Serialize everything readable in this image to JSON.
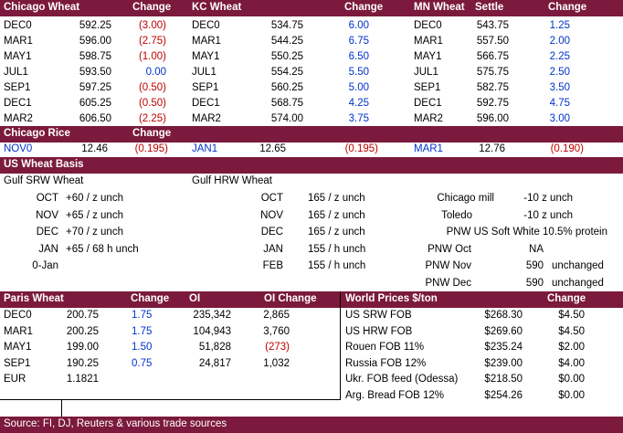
{
  "futures": {
    "headers": [
      "Chicago Wheat",
      "Change",
      "KC Wheat",
      "Change",
      "MN Wheat",
      "Settle",
      "Change"
    ],
    "rows": [
      {
        "cm": "DEC0",
        "cp": "592.25",
        "cc": "(3.00)",
        "cc_neg": true,
        "km": "DEC0",
        "kp": "534.75",
        "kc": "6.00",
        "kc_neg": false,
        "mm": "DEC0",
        "mp": "543.75",
        "mc": "1.25",
        "mc_neg": false
      },
      {
        "cm": "MAR1",
        "cp": "596.00",
        "cc": "(2.75)",
        "cc_neg": true,
        "km": "MAR1",
        "kp": "544.25",
        "kc": "6.75",
        "kc_neg": false,
        "mm": "MAR1",
        "mp": "557.50",
        "mc": "2.00",
        "mc_neg": false
      },
      {
        "cm": "MAY1",
        "cp": "598.75",
        "cc": "(1.00)",
        "cc_neg": true,
        "km": "MAY1",
        "kp": "550.25",
        "kc": "6.50",
        "kc_neg": false,
        "mm": "MAY1",
        "mp": "566.75",
        "mc": "2.25",
        "mc_neg": false
      },
      {
        "cm": "JUL1",
        "cp": "593.50",
        "cc": "0.00",
        "cc_neg": false,
        "km": "JUL1",
        "kp": "554.25",
        "kc": "5.50",
        "kc_neg": false,
        "mm": "JUL1",
        "mp": "575.75",
        "mc": "2.50",
        "mc_neg": false
      },
      {
        "cm": "SEP1",
        "cp": "597.25",
        "cc": "(0.50)",
        "cc_neg": true,
        "km": "SEP1",
        "kp": "560.25",
        "kc": "5.00",
        "kc_neg": false,
        "mm": "SEP1",
        "mp": "582.75",
        "mc": "3.50",
        "mc_neg": false
      },
      {
        "cm": "DEC1",
        "cp": "605.25",
        "cc": "(0.50)",
        "cc_neg": true,
        "km": "DEC1",
        "kp": "568.75",
        "kc": "4.25",
        "kc_neg": false,
        "mm": "DEC1",
        "mp": "592.75",
        "mc": "4.75",
        "mc_neg": false
      },
      {
        "cm": "MAR2",
        "cp": "606.50",
        "cc": "(2.25)",
        "cc_neg": true,
        "km": "MAR2",
        "kp": "574.00",
        "kc": "3.75",
        "kc_neg": false,
        "mm": "MAR2",
        "mp": "596.00",
        "mc": "3.00",
        "mc_neg": false
      }
    ]
  },
  "rice": {
    "headers": [
      "Chicago Rice",
      "Change"
    ],
    "row": {
      "m1": "NOV0",
      "p1": "12.46",
      "c1": "(0.195)",
      "m2": "JAN1",
      "p2": "12.65",
      "c2": "(0.195)",
      "m3": "MAR1",
      "p3": "12.76",
      "c3": "(0.190)"
    }
  },
  "basis": {
    "title": "US Wheat Basis",
    "gulf_srw_label": "Gulf SRW Wheat",
    "gulf_hrw_label": "Gulf HRW Wheat",
    "rows": [
      {
        "sm": "OCT",
        "sv": "+60 / z  unch",
        "hm": "OCT",
        "hv": "165 / z  unch",
        "pl": "Chicago mill",
        "pv": "-10 z  unch",
        "pu": ""
      },
      {
        "sm": "NOV",
        "sv": "+65 / z  unch",
        "hm": "NOV",
        "hv": "165 / z  unch",
        "pl": "Toledo",
        "pv": "-10 z  unch",
        "pu": ""
      },
      {
        "sm": "DEC",
        "sv": "+70 / z  unch",
        "hm": "DEC",
        "hv": "165 / z  unch",
        "pl": "PNW US Soft White 10.5% protein",
        "pv": "",
        "pu": ""
      },
      {
        "sm": "JAN",
        "sv": "+65 / 68  h  unch",
        "hm": "JAN",
        "hv": "155 / h  unch",
        "pl": "PNW Oct",
        "pv": "NA",
        "pu": ""
      },
      {
        "sm": "0-Jan",
        "sv": "",
        "hm": "FEB",
        "hv": "155 / h  unch",
        "pl": "PNW Nov",
        "pv": "590",
        "pu": "unchanged"
      },
      {
        "sm": "",
        "sv": "",
        "hm": "",
        "hv": "",
        "pl": "PNW Dec",
        "pv": "590",
        "pu": "unchanged"
      }
    ]
  },
  "paris": {
    "headers": [
      "Paris Wheat",
      "Change",
      "OI",
      "OI Change"
    ],
    "rows": [
      {
        "m": "DEC0",
        "p": "200.75",
        "c": "1.75",
        "oi": "235,342",
        "oic": "2,865",
        "oic_neg": false
      },
      {
        "m": "MAR1",
        "p": "200.25",
        "c": "1.75",
        "oi": "104,943",
        "oic": "3,760",
        "oic_neg": false
      },
      {
        "m": "MAY1",
        "p": "199.00",
        "c": "1.50",
        "oi": "51,828",
        "oic": "(273)",
        "oic_neg": true
      },
      {
        "m": "SEP1",
        "p": "190.25",
        "c": "0.75",
        "oi": "24,817",
        "oic": "1,032",
        "oic_neg": false
      }
    ],
    "eur_label": "EUR",
    "eur_value": "1.1821"
  },
  "world": {
    "headers": [
      "World Prices $/ton",
      "Change"
    ],
    "rows": [
      {
        "n": "US SRW FOB",
        "p": "$268.30",
        "c": "$4.50"
      },
      {
        "n": "US HRW FOB",
        "p": "$269.60",
        "c": "$4.50"
      },
      {
        "n": "Rouen FOB 11%",
        "p": "$235.24",
        "c": "$2.00"
      },
      {
        "n": "Russia FOB 12%",
        "p": "$239.00",
        "c": "$4.00"
      },
      {
        "n": "Ukr. FOB feed (Odessa)",
        "p": "$218.50",
        "c": "$0.00"
      },
      {
        "n": "Arg. Bread FOB 12%",
        "p": "$254.26",
        "c": "$0.00"
      }
    ]
  },
  "footer": "Source: FI, DJ, Reuters & various trade sources",
  "colors": {
    "header_bg": "#7b1a3c",
    "negative": "#c00000",
    "positive": "#0033cc"
  }
}
